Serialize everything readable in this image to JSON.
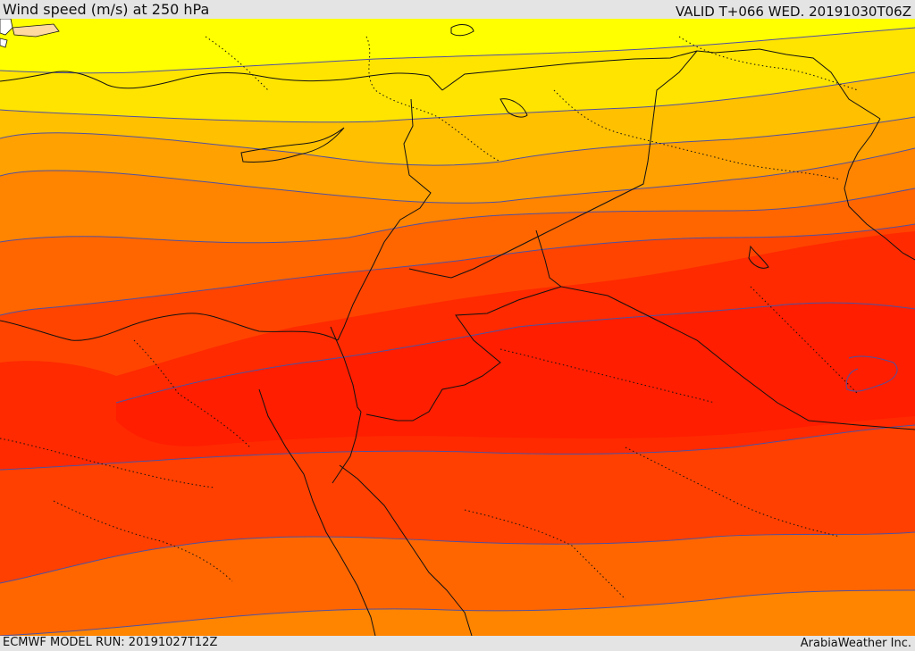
{
  "header": {
    "title": "Wind speed (m/s) at 250 hPa",
    "valid_time": "VALID T+066 WED. 20191030T06Z"
  },
  "footer": {
    "model_run": "ECMWF MODEL RUN: 20191027T12Z",
    "credit": "ArabiaWeather Inc."
  },
  "map": {
    "bands": [
      {
        "name": "band-1",
        "color": "#ffff00"
      },
      {
        "name": "band-2",
        "color": "#ffe400"
      },
      {
        "name": "band-3",
        "color": "#ffc000"
      },
      {
        "name": "band-4",
        "color": "#ffa100"
      },
      {
        "name": "band-5",
        "color": "#ff8400"
      },
      {
        "name": "band-6",
        "color": "#ff6600"
      },
      {
        "name": "band-7",
        "color": "#ff4400"
      },
      {
        "name": "band-8",
        "color": "#ff2a00"
      },
      {
        "name": "band-9",
        "color": "#ff1e00"
      }
    ],
    "land_outline_color": "#111111",
    "contour_line_color": "#5050a0"
  }
}
